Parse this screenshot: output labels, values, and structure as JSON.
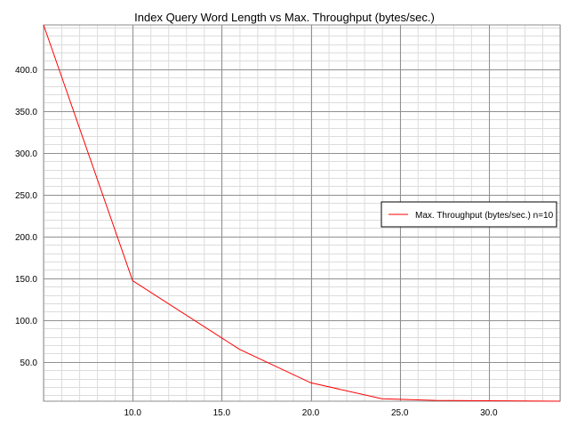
{
  "chart_data": {
    "type": "line",
    "title": "Index Query Word Length vs Max. Throughput (bytes/sec.)",
    "xlabel": "",
    "ylabel": "",
    "xlim": [
      5,
      34
    ],
    "ylim": [
      3,
      453
    ],
    "x_major_ticks": [
      10,
      15,
      20,
      25,
      30
    ],
    "x_tick_labels": [
      "10.0",
      "15.0",
      "20.0",
      "25.0",
      "30.0"
    ],
    "y_major_ticks": [
      50,
      100,
      150,
      200,
      250,
      300,
      350,
      400
    ],
    "y_tick_labels": [
      "50.0",
      "100.0",
      "150.0",
      "200.0",
      "250.0",
      "300.0",
      "350.0",
      "400.0"
    ],
    "grid": true,
    "legend_position": "right",
    "series": [
      {
        "name": "Max. Throughput (bytes/sec.) n=10",
        "color": "#ff0000",
        "x": [
          5,
          10,
          16,
          20,
          24,
          27,
          30,
          34
        ],
        "y": [
          453,
          147,
          65,
          25,
          6,
          4,
          3.5,
          3
        ]
      }
    ]
  }
}
